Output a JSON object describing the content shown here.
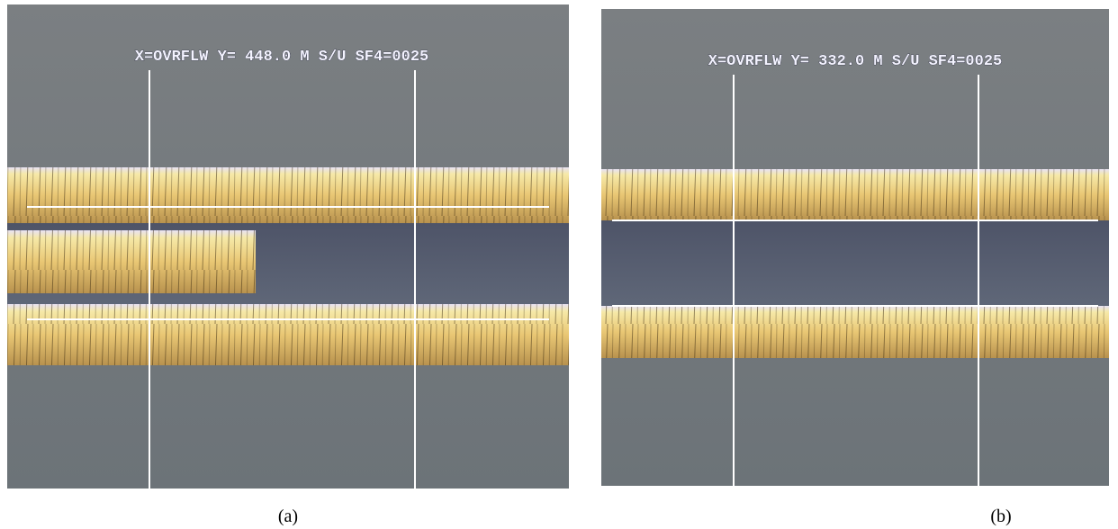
{
  "panels": [
    {
      "overlay": "X=OVRFLW Y= 448.0 M S/U SF4=0025",
      "caption": "(a)"
    },
    {
      "overlay": "X=OVRFLW Y= 332.0 M S/U SF4=0025",
      "caption": "(b)"
    }
  ]
}
